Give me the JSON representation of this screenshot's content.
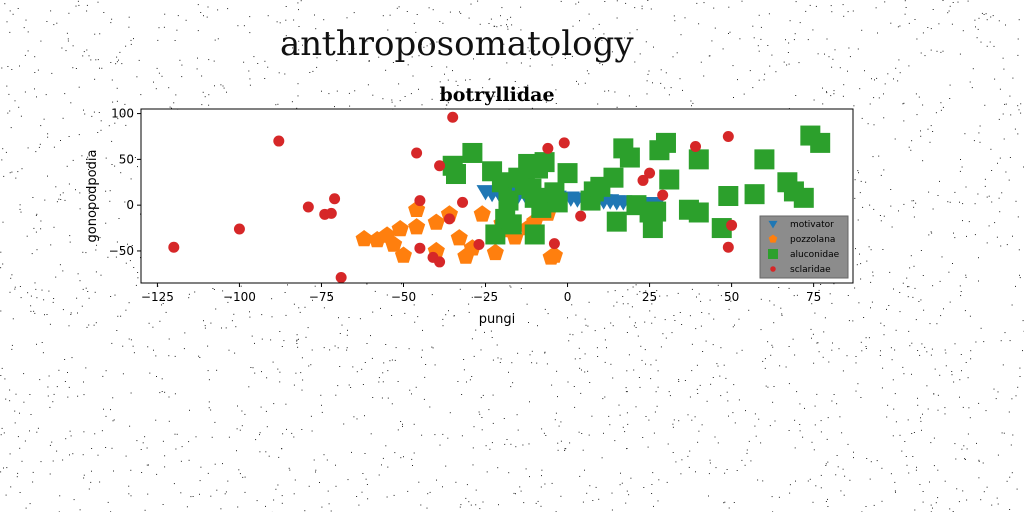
{
  "figure": {
    "suptitle": "anthroposomatology"
  },
  "chart_data": {
    "type": "scatter",
    "title": "botryllidae",
    "xlabel": "pungi",
    "ylabel": "gonopodpodia",
    "xlim": [
      -130,
      87
    ],
    "ylim": [
      -85,
      105
    ],
    "xticks": [
      -125,
      -100,
      -75,
      -50,
      -25,
      0,
      25,
      50,
      75
    ],
    "yticks": [
      -50,
      0,
      50,
      100
    ],
    "grid": false,
    "legend_position": "lower-right",
    "series": [
      {
        "name": "motivator",
        "marker": "triangle-down",
        "color": "#1f77b4",
        "points": [
          [
            -25,
            15
          ],
          [
            -23,
            13
          ],
          [
            -21,
            14
          ],
          [
            -19,
            12
          ],
          [
            -17,
            13
          ],
          [
            -15,
            11
          ],
          [
            -13,
            12
          ],
          [
            -11,
            10
          ],
          [
            -9,
            11
          ],
          [
            -7,
            9
          ],
          [
            -5,
            10
          ],
          [
            -3,
            9
          ],
          [
            -1,
            8
          ],
          [
            1,
            8
          ],
          [
            3,
            7
          ],
          [
            5,
            7
          ],
          [
            7,
            6
          ],
          [
            9,
            6
          ],
          [
            11,
            5
          ],
          [
            13,
            5
          ],
          [
            15,
            4
          ],
          [
            17,
            4
          ],
          [
            19,
            3
          ],
          [
            21,
            3
          ],
          [
            23,
            2
          ],
          [
            25,
            2
          ],
          [
            27,
            1
          ]
        ]
      },
      {
        "name": "pozzolana",
        "marker": "pentagon",
        "color": "#ff7f0e",
        "points": [
          [
            -62,
            -37
          ],
          [
            -58,
            -38
          ],
          [
            -55,
            -33
          ],
          [
            -53,
            -43
          ],
          [
            -51,
            -26
          ],
          [
            -50,
            -55
          ],
          [
            -46,
            -5
          ],
          [
            -46,
            -24
          ],
          [
            -40,
            -50
          ],
          [
            -40,
            -19
          ],
          [
            -36,
            -10
          ],
          [
            -33,
            -36
          ],
          [
            -31,
            -56
          ],
          [
            -29,
            -47
          ],
          [
            -26,
            -10
          ],
          [
            -22,
            -52
          ],
          [
            -20,
            -20
          ],
          [
            -18,
            -27
          ],
          [
            -16,
            -35
          ],
          [
            -12,
            -25
          ],
          [
            -10,
            -18
          ],
          [
            -8,
            -6
          ],
          [
            -6,
            -9
          ],
          [
            -5,
            -57
          ],
          [
            -4,
            -55
          ]
        ]
      },
      {
        "name": "aluconidae",
        "marker": "square",
        "color": "#2ca02c",
        "points": [
          [
            -35,
            43
          ],
          [
            -34,
            34
          ],
          [
            -29,
            57
          ],
          [
            -23,
            37
          ],
          [
            -22,
            -32
          ],
          [
            -20,
            25
          ],
          [
            -19,
            -15
          ],
          [
            -18,
            5
          ],
          [
            -17,
            -21
          ],
          [
            -15,
            30
          ],
          [
            -13,
            22
          ],
          [
            -12,
            45
          ],
          [
            -11,
            18
          ],
          [
            -10,
            8
          ],
          [
            -10,
            -32
          ],
          [
            -9,
            40
          ],
          [
            -8,
            -3
          ],
          [
            -7,
            47
          ],
          [
            -4,
            14
          ],
          [
            -3,
            3
          ],
          [
            0,
            35
          ],
          [
            7,
            5
          ],
          [
            8,
            15
          ],
          [
            10,
            20
          ],
          [
            14,
            30
          ],
          [
            15,
            -18
          ],
          [
            17,
            62
          ],
          [
            19,
            52
          ],
          [
            21,
            0
          ],
          [
            25,
            -8
          ],
          [
            26,
            -25
          ],
          [
            27,
            -7
          ],
          [
            28,
            60
          ],
          [
            30,
            68
          ],
          [
            31,
            28
          ],
          [
            37,
            -5
          ],
          [
            40,
            -8
          ],
          [
            40,
            50
          ],
          [
            47,
            -25
          ],
          [
            49,
            10
          ],
          [
            57,
            12
          ],
          [
            60,
            50
          ],
          [
            67,
            25
          ],
          [
            69,
            15
          ],
          [
            72,
            8
          ],
          [
            74,
            76
          ],
          [
            77,
            68
          ]
        ]
      },
      {
        "name": "sclaridae",
        "marker": "circle",
        "color": "#d62728",
        "points": [
          [
            -120,
            -46
          ],
          [
            -100,
            -26
          ],
          [
            -88,
            70
          ],
          [
            -79,
            -2
          ],
          [
            -74,
            -10
          ],
          [
            -72,
            -9
          ],
          [
            -71,
            7
          ],
          [
            -69,
            -79
          ],
          [
            -46,
            57
          ],
          [
            -45,
            5
          ],
          [
            -45,
            -47
          ],
          [
            -41,
            -57
          ],
          [
            -39,
            -62
          ],
          [
            -39,
            43
          ],
          [
            -36,
            -15
          ],
          [
            -35,
            96
          ],
          [
            -32,
            3
          ],
          [
            -27,
            -43
          ],
          [
            -6,
            62
          ],
          [
            -4,
            -42
          ],
          [
            -1,
            68
          ],
          [
            4,
            -12
          ],
          [
            23,
            27
          ],
          [
            25,
            35
          ],
          [
            29,
            11
          ],
          [
            39,
            64
          ],
          [
            49,
            75
          ],
          [
            49,
            -46
          ],
          [
            50,
            -22
          ]
        ]
      }
    ]
  }
}
